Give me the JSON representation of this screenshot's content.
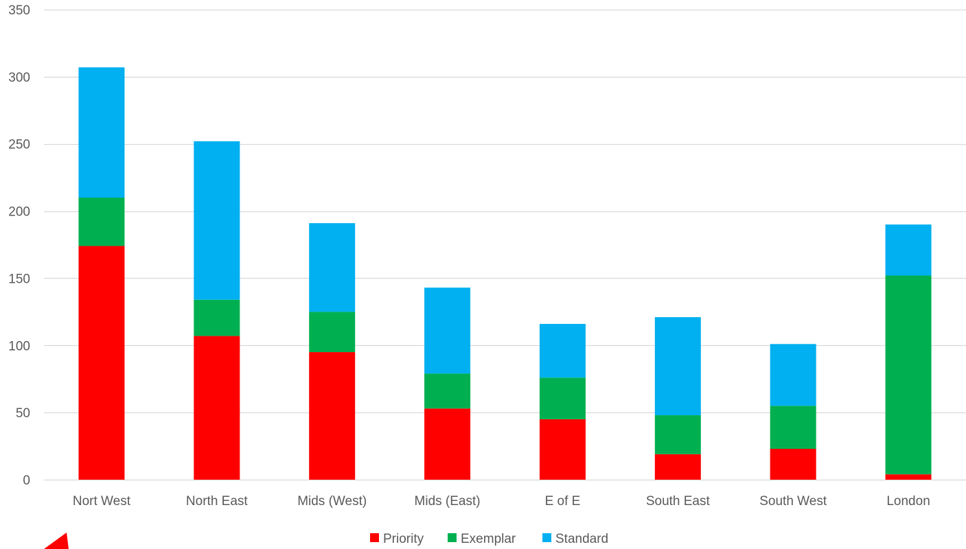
{
  "chart_data": {
    "type": "bar",
    "stacked": true,
    "categories": [
      "Nort West",
      "North East",
      "Mids (West)",
      "Mids (East)",
      "E of E",
      "South East",
      "South West",
      "London"
    ],
    "series": [
      {
        "name": "Priority",
        "color": "#ff0000",
        "values": [
          174,
          107,
          95,
          53,
          45,
          19,
          23,
          4
        ]
      },
      {
        "name": "Exemplar",
        "color": "#00b050",
        "values": [
          36,
          27,
          30,
          26,
          31,
          29,
          32,
          148
        ]
      },
      {
        "name": "Standard",
        "color": "#00b0f0",
        "values": [
          97,
          118,
          66,
          64,
          40,
          73,
          46,
          38
        ]
      }
    ],
    "ylim": [
      0,
      350
    ],
    "yticks": [
      0,
      50,
      100,
      150,
      200,
      250,
      300,
      350
    ],
    "grid": true,
    "legend_position": "bottom"
  },
  "decor": {
    "corner_mark_icon": "red-triangle-icon",
    "corner_mark_color": "#ff0000"
  }
}
